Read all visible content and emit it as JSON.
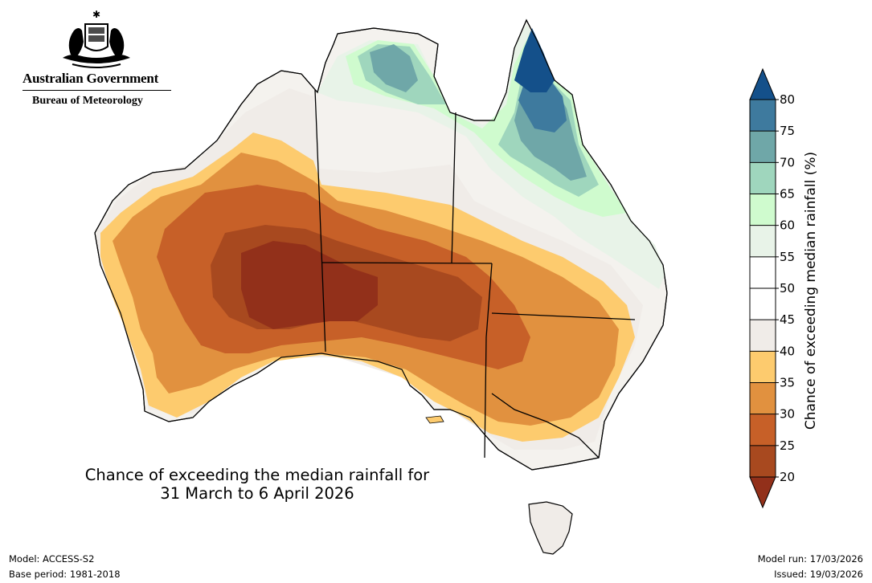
{
  "header": {
    "agency": "Australian Government",
    "bureau": "Bureau of Meteorology"
  },
  "map": {
    "title_line1": "Chance of exceeding the median rainfall for",
    "title_line2": "31 March to 6 April 2026",
    "regions": [
      {
        "area": "Pilbara / north-west WA coast",
        "band": "35-40"
      },
      {
        "area": "Central and eastern WA interior",
        "band": "25-30"
      },
      {
        "area": "Western SA / far east WA",
        "band": "20-25"
      },
      {
        "area": "Northern SA",
        "band": "20-25"
      },
      {
        "area": "Southern NSW and Victoria",
        "band": "35-40"
      },
      {
        "area": "Top End NT",
        "band": "45-55"
      },
      {
        "area": "Cape York Peninsula",
        "band": "75-80+"
      },
      {
        "area": "Eastern Queensland coast",
        "band": "60-70"
      },
      {
        "area": "Tasmania",
        "band": "40-55"
      }
    ]
  },
  "colorbar": {
    "label": "Chance of exceeding median rainfall (%)",
    "ticks": [
      "80",
      "75",
      "70",
      "65",
      "60",
      "55",
      "50",
      "45",
      "40",
      "35",
      "30",
      "25",
      "20"
    ],
    "bands": [
      "#14508a",
      "#3e7a9e",
      "#6fa7a8",
      "#9fd6bd",
      "#cffbce",
      "#e8f3e8",
      "#ffffff",
      "#ffffff",
      "#f0ece8",
      "#fdcb6e",
      "#e1913f",
      "#c76028",
      "#a8491f"
    ],
    "over_color": "#14508a",
    "under_color": "#92301a"
  },
  "footer": {
    "model": "Model: ACCESS-S2",
    "base_period": "Base period: 1981-2018",
    "model_run": "Model run: 17/03/2026",
    "issued": "Issued: 19/03/2026"
  }
}
